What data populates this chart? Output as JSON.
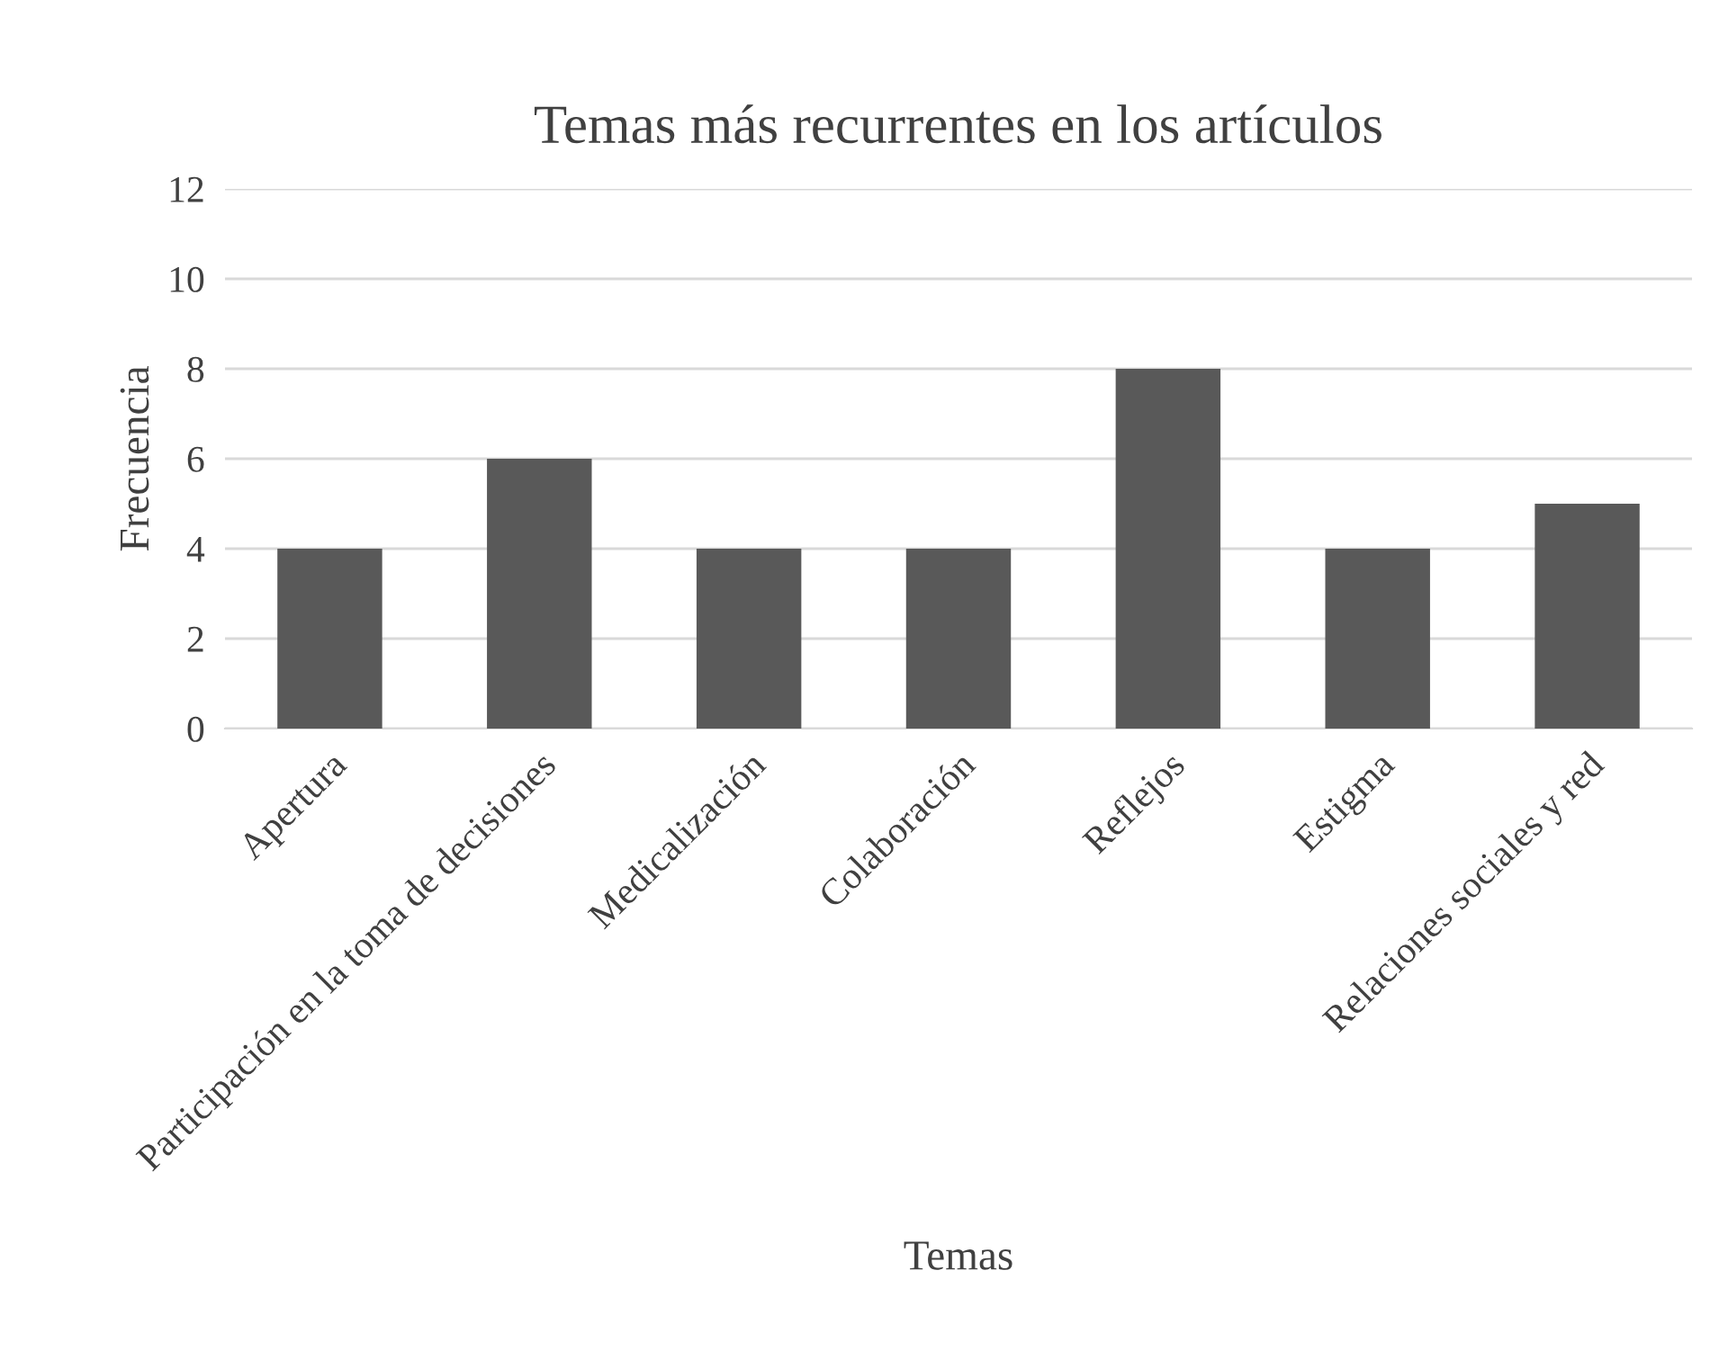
{
  "chart_data": {
    "type": "bar",
    "title": "Temas más recurrentes en los artículos",
    "xlabel": "Temas",
    "ylabel": "Frecuencia",
    "categories": [
      "Apertura",
      "Participación en la toma de decisiones",
      "Medicalización",
      "Colaboración",
      "Reflejos",
      "Estigma",
      "Relaciones sociales y red"
    ],
    "values": [
      4,
      6,
      4,
      4,
      8,
      4,
      5
    ],
    "color": "#595959",
    "ylim": [
      0,
      12
    ],
    "yticks": [
      0,
      2,
      4,
      6,
      8,
      10,
      12
    ],
    "grid": "y",
    "legend": false
  }
}
